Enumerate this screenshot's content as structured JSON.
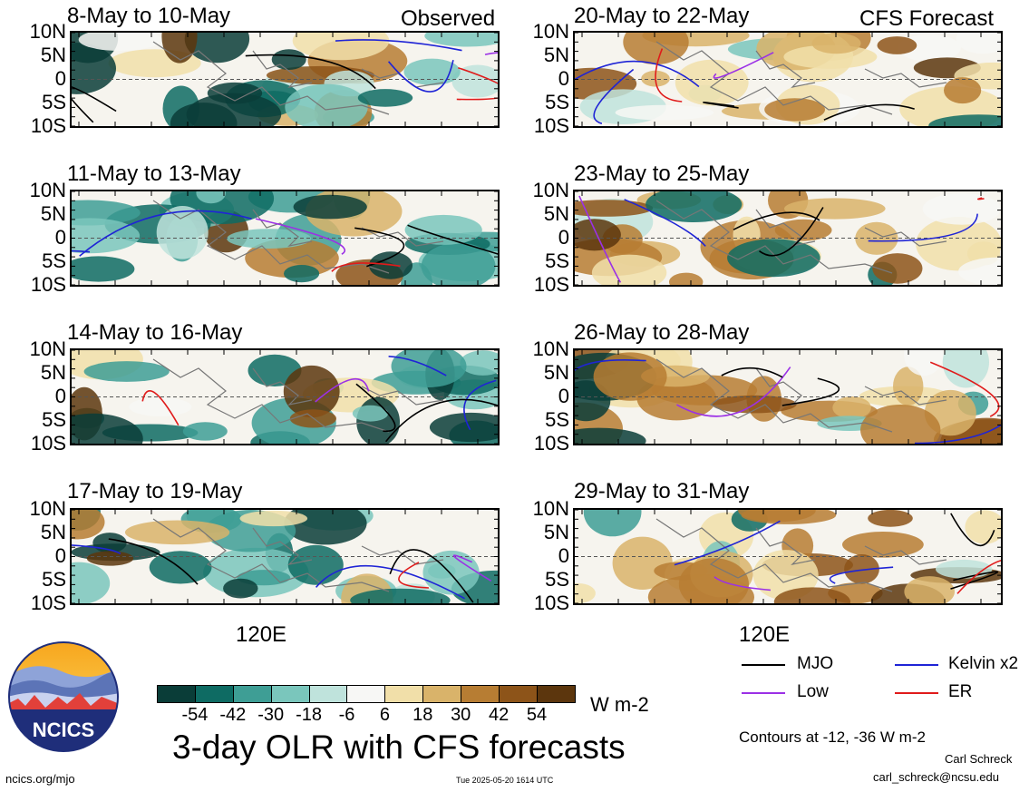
{
  "header": {
    "observed_label": "Observed",
    "forecast_label": "CFS Forecast"
  },
  "lat_labels": [
    "10N",
    "5N",
    "0",
    "5S",
    "10S"
  ],
  "panels_left": [
    {
      "title": "8-May to 10-May"
    },
    {
      "title": "11-May to 13-May"
    },
    {
      "title": "14-May to 16-May"
    },
    {
      "title": "17-May to 19-May"
    }
  ],
  "panels_right": [
    {
      "title": "20-May to 22-May"
    },
    {
      "title": "23-May to 25-May"
    },
    {
      "title": "26-May to 28-May"
    },
    {
      "title": "29-May to 31-May"
    }
  ],
  "x_tick": "120E",
  "colorbar": {
    "labels": [
      "-54",
      "-42",
      "-30",
      "-18",
      "-6",
      "6",
      "18",
      "30",
      "42",
      "54"
    ],
    "units": "W m-2",
    "colors": [
      "#0a3d38",
      "#0e6b63",
      "#3e9e95",
      "#7ac6bc",
      "#bfe3dc",
      "#f7f7f5",
      "#f1dfa9",
      "#d9b36a",
      "#b77d33",
      "#8d5419",
      "#5c360d"
    ]
  },
  "legend": [
    {
      "name": "MJO",
      "color": "#000000"
    },
    {
      "name": "Kelvin x2",
      "color": "#1f24d6"
    },
    {
      "name": "Low",
      "color": "#9b30e6"
    },
    {
      "name": "ER",
      "color": "#e01b1b"
    }
  ],
  "contours_note": "Contours at -12, -36 W m-2",
  "main_title": "3-day OLR with CFS forecasts",
  "logo_text": "NCICS",
  "footer": {
    "url": "ncics.org/mjo",
    "timestamp": "Tue 2025-05-20 1614 UTC",
    "author": "Carl Schreck",
    "email": "carl_schreck@ncsu.edu"
  }
}
